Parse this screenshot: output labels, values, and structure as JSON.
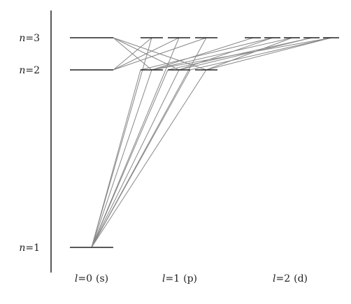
{
  "level_labels": [
    {
      "n": "3",
      "var": "n",
      "eq": "="
    },
    {
      "n": "2",
      "var": "n",
      "eq": "="
    },
    {
      "n": "1",
      "var": "n",
      "eq": "="
    }
  ],
  "columns": [
    {
      "var": "l",
      "eq": "=",
      "value": "0",
      "orbital": "(s)"
    },
    {
      "var": "l",
      "eq": "=",
      "value": "1",
      "orbital": "(p)"
    },
    {
      "var": "l",
      "eq": "=",
      "value": "2",
      "orbital": "(d)"
    }
  ],
  "colors": {
    "axis": "#222222",
    "level": "#222222",
    "transition": "#888888"
  }
}
